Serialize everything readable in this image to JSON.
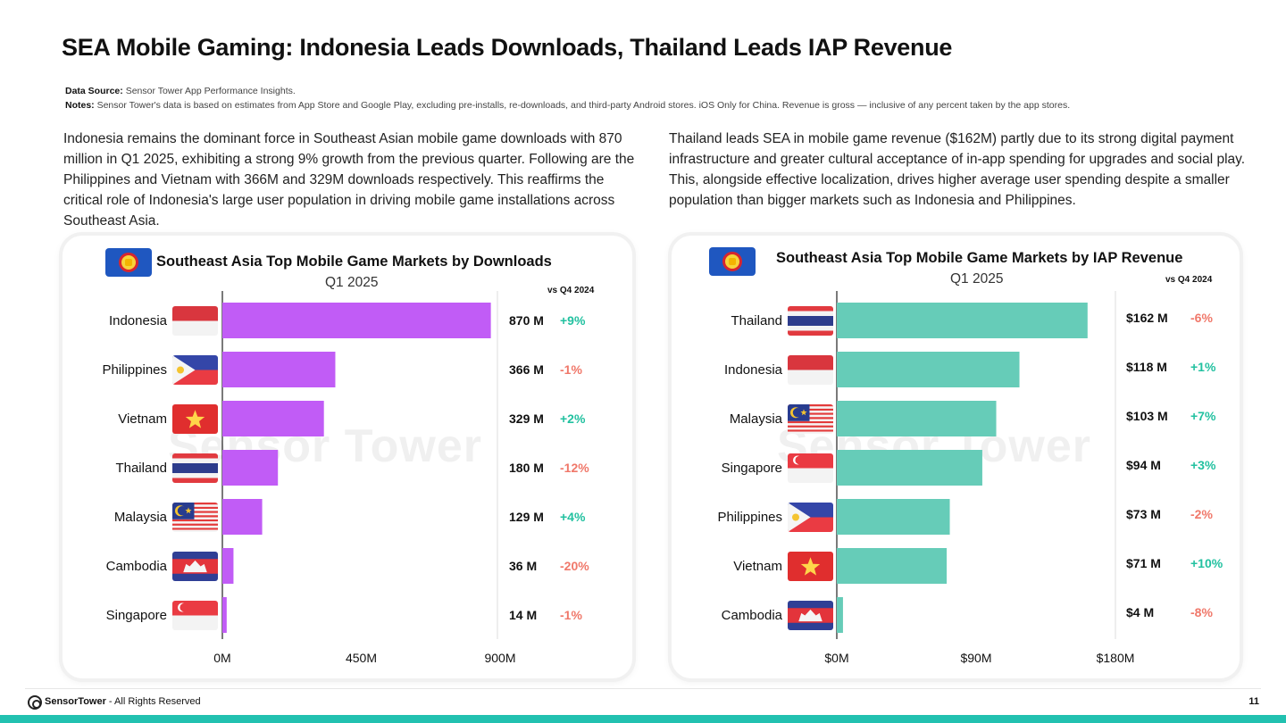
{
  "page": {
    "title": "SEA Mobile Gaming: Indonesia Leads Downloads, Thailand Leads IAP Revenue",
    "data_source_label": "Data Source:",
    "data_source_text": "Sensor Tower App Performance Insights.",
    "notes_label": "Notes:",
    "notes_text": "Sensor Tower's data is based on estimates from App Store and Google Play, excluding pre-installs, re-downloads, and third-party Android stores. iOS Only for China.  Revenue is gross — inclusive of any percent taken by the app stores.",
    "left_paragraph": "Indonesia remains the dominant force in Southeast Asian mobile game downloads with 870 million in Q1 2025, exhibiting a strong 9% growth from the previous quarter. Following are the Philippines and Vietnam with 366M and 329M downloads respectively. This reaffirms the critical role of Indonesia's large user population in driving mobile game installations across Southeast Asia.",
    "right_paragraph": "Thailand leads SEA in mobile game revenue ($162M) partly due to its strong digital payment infrastructure and greater cultural acceptance of in-app spending for upgrades and social play. This, alongside effective localization, drives higher average user spending despite a smaller population than bigger markets such as Indonesia and Philippines.",
    "watermark": "Sensor Tower",
    "footer_brand": "SensorTower",
    "footer_rights": " - All Rights Reserved",
    "page_number": "11"
  },
  "colors": {
    "downloads_bar": "#c15cf6",
    "revenue_bar": "#66ccb8",
    "positive": "#22c1a0",
    "negative": "#f0786a",
    "axis": "#222222",
    "accent_bottom": "#22c1b0"
  },
  "chart_data": [
    {
      "type": "bar",
      "orientation": "horizontal",
      "title": "Southeast Asia Top Mobile Game Markets by Downloads",
      "subtitle": "Q1 2025",
      "change_header": "vs Q4 2024",
      "categories": [
        "Indonesia",
        "Philippines",
        "Vietnam",
        "Thailand",
        "Malaysia",
        "Cambodia",
        "Singapore"
      ],
      "flags": [
        "indonesia-flag",
        "philippines-flag",
        "vietnam-flag",
        "thailand-flag",
        "malaysia-flag",
        "cambodia-flag",
        "singapore-flag"
      ],
      "values": [
        870,
        366,
        329,
        180,
        129,
        36,
        14
      ],
      "value_labels": [
        "870 M",
        "366 M",
        "329 M",
        "180 M",
        "129 M",
        "36 M",
        "14 M"
      ],
      "changes": [
        "+9%",
        "-1%",
        "+2%",
        "-12%",
        "+4%",
        "-20%",
        "-1%"
      ],
      "xlim": [
        0,
        900
      ],
      "xticks": [
        0,
        450,
        900
      ],
      "xtick_labels": [
        "0M",
        "450M",
        "900M"
      ],
      "unit": "downloads (millions)"
    },
    {
      "type": "bar",
      "orientation": "horizontal",
      "title": "Southeast Asia Top Mobile Game Markets by IAP Revenue",
      "subtitle": "Q1 2025",
      "change_header": "vs Q4 2024",
      "categories": [
        "Thailand",
        "Indonesia",
        "Malaysia",
        "Singapore",
        "Philippines",
        "Vietnam",
        "Cambodia"
      ],
      "flags": [
        "thailand-flag",
        "indonesia-flag",
        "malaysia-flag",
        "singapore-flag",
        "philippines-flag",
        "vietnam-flag",
        "cambodia-flag"
      ],
      "values": [
        162,
        118,
        103,
        94,
        73,
        71,
        4
      ],
      "value_labels": [
        "$162 M",
        "$118 M",
        "$103 M",
        "$94 M",
        "$73 M",
        "$71 M",
        "$4 M"
      ],
      "changes": [
        "-6%",
        "+1%",
        "+7%",
        "+3%",
        "-2%",
        "+10%",
        "-8%"
      ],
      "xlim": [
        0,
        180
      ],
      "xticks": [
        0,
        90,
        180
      ],
      "xtick_labels": [
        "$0M",
        "$90M",
        "$180M"
      ],
      "unit": "IAP revenue (USD millions)"
    }
  ]
}
